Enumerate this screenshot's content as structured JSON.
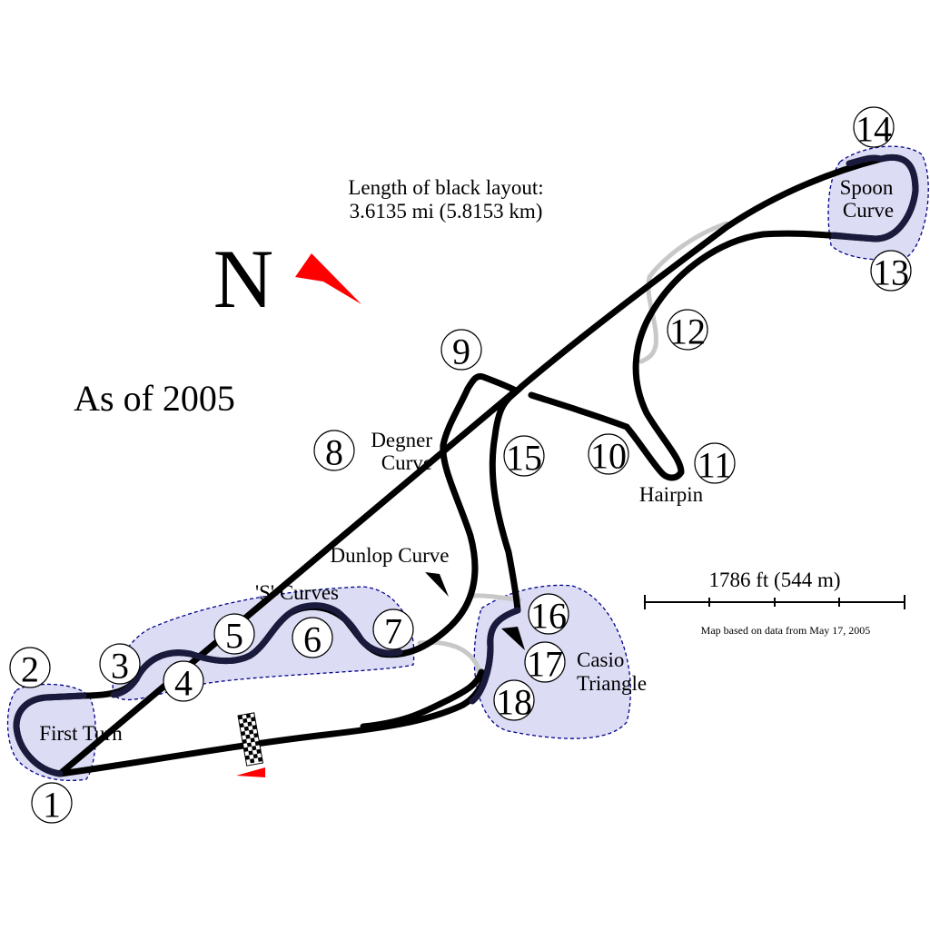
{
  "layout_note": {
    "line1": "Length of black layout:",
    "line2": "3.6135 mi (5.8153 km)"
  },
  "north": {
    "letter": "N",
    "arrow_color": "#ff0000"
  },
  "date_label": "As of 2005",
  "scale": {
    "label": "1786 ft (544 m)",
    "source": "Map based on data from May 17, 2005"
  },
  "named_sections": {
    "first_turn": "First Turn",
    "s_curves": "'S' Curves",
    "degner_line1": "Degner",
    "degner_line2": "Curve",
    "dunlop": "Dunlop Curve",
    "hairpin": "Hairpin",
    "spoon_line1": "Spoon",
    "spoon_line2": "Curve",
    "casio_line1": "Casio",
    "casio_line2": "Triangle"
  },
  "corners": [
    "1",
    "2",
    "3",
    "4",
    "5",
    "6",
    "7",
    "8",
    "9",
    "10",
    "11",
    "12",
    "13",
    "14",
    "15",
    "16",
    "17",
    "18"
  ],
  "colors": {
    "track": "#000000",
    "disused_track": "#c8c8c8",
    "highlight_zone": "#dcdcf5",
    "zone_border": "#00008b",
    "start_flag": "#ff0000"
  }
}
